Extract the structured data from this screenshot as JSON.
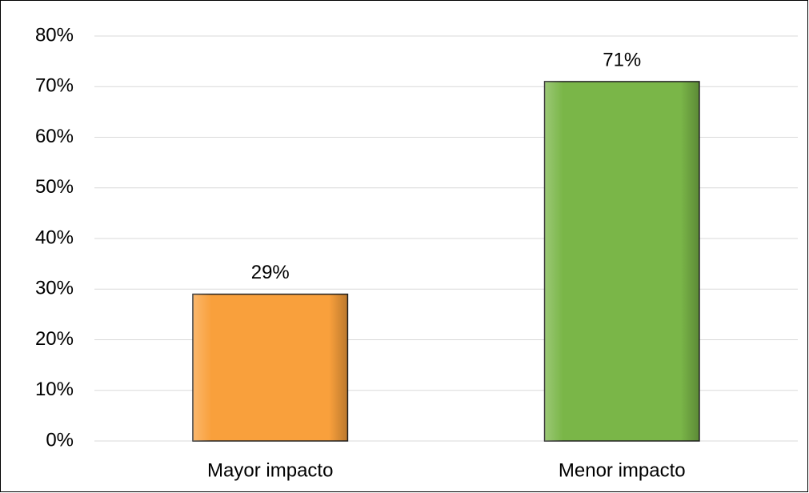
{
  "chart_data": {
    "type": "bar",
    "categories": [
      "Mayor impacto",
      "Menor impacto"
    ],
    "values": [
      29,
      71
    ],
    "value_labels": [
      "29%",
      "71%"
    ],
    "colors": [
      "#f9a03c",
      "#7ab648"
    ],
    "ylim": [
      0,
      80
    ],
    "yticks": [
      {
        "value": 0,
        "label": "0%"
      },
      {
        "value": 10,
        "label": "10%"
      },
      {
        "value": 20,
        "label": "20%"
      },
      {
        "value": 30,
        "label": "30%"
      },
      {
        "value": 40,
        "label": "40%"
      },
      {
        "value": 50,
        "label": "50%"
      },
      {
        "value": 60,
        "label": "60%"
      },
      {
        "value": 70,
        "label": "70%"
      },
      {
        "value": 80,
        "label": "80%"
      }
    ],
    "grid": true
  }
}
